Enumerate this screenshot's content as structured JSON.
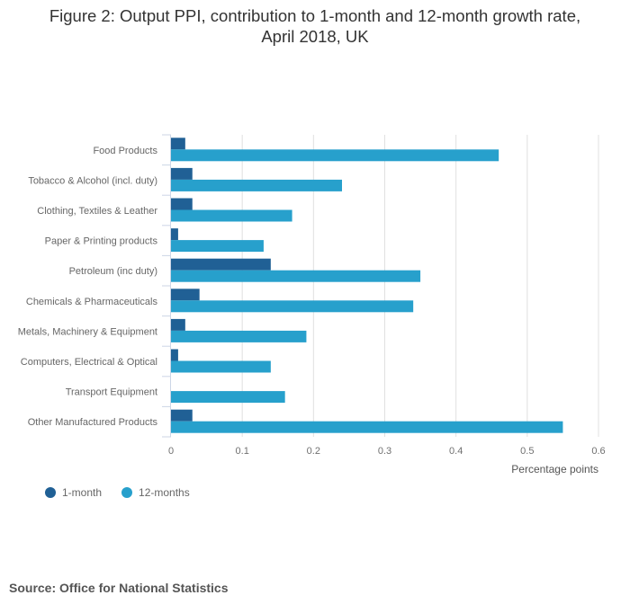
{
  "chart_data": {
    "type": "bar",
    "orientation": "horizontal",
    "title": "Figure 2: Output PPI, contribution to 1-month and 12-month growth rate, April 2018, UK",
    "title_lines": [
      "Figure 2: Output PPI, contribution to 1-month and 12-month growth rate,",
      "April 2018, UK"
    ],
    "categories": [
      "Food Products",
      "Tobacco & Alcohol (incl. duty)",
      "Clothing, Textiles & Leather",
      "Paper & Printing products",
      "Petroleum (inc duty)",
      "Chemicals & Pharmaceuticals",
      "Metals, Machinery & Equipment",
      "Computers, Electrical & Optical",
      "Transport Equipment",
      "Other Manufactured Products"
    ],
    "series": [
      {
        "name": "1-month",
        "color": "#206095",
        "values": [
          0.02,
          0.03,
          0.03,
          0.01,
          0.14,
          0.04,
          0.02,
          0.01,
          0.0,
          0.03
        ]
      },
      {
        "name": "12-months",
        "color": "#27a0cc",
        "values": [
          0.46,
          0.24,
          0.17,
          0.13,
          0.35,
          0.34,
          0.19,
          0.14,
          0.16,
          0.55
        ]
      }
    ],
    "xlabel": "Percentage points",
    "ylabel": "",
    "xlim": [
      0,
      0.6
    ],
    "xticks": [
      "0",
      "0.1",
      "0.2",
      "0.3",
      "0.4",
      "0.5",
      "0.6"
    ],
    "grid": true,
    "legend_position": "bottom-left"
  },
  "legend": [
    {
      "label": "1-month",
      "color": "#206095"
    },
    {
      "label": "12-months",
      "color": "#27a0cc"
    }
  ],
  "source": "Source: Office for National Statistics"
}
